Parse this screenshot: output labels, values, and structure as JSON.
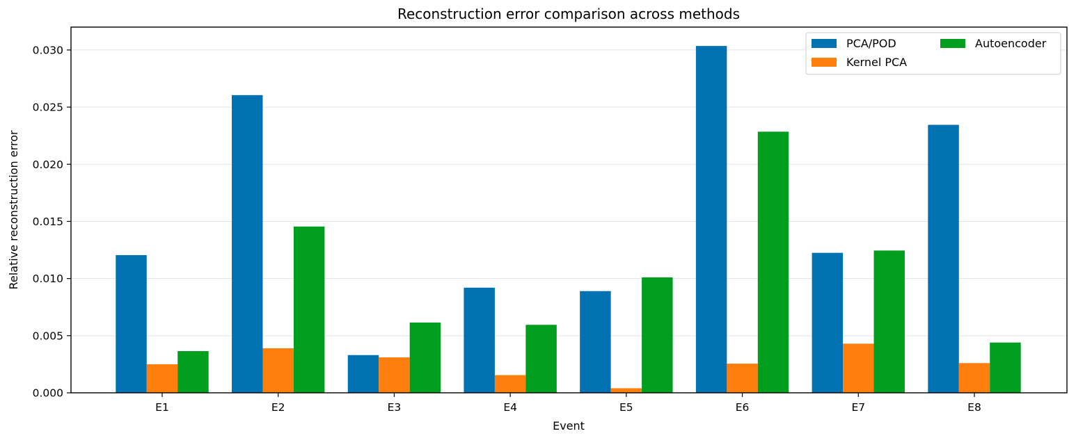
{
  "chart_data": {
    "type": "bar",
    "title": "Reconstruction error comparison across methods",
    "xlabel": "Event",
    "ylabel": "Relative reconstruction error",
    "categories": [
      "E1",
      "E2",
      "E3",
      "E4",
      "E5",
      "E6",
      "E7",
      "E8"
    ],
    "series": [
      {
        "name": "PCA/POD",
        "color": "#0072b2",
        "values": [
          0.01205,
          0.02605,
          0.0033,
          0.0092,
          0.0089,
          0.03035,
          0.01225,
          0.02345
        ]
      },
      {
        "name": "Kernel PCA",
        "color": "#ff7f0e",
        "values": [
          0.0025,
          0.0039,
          0.0031,
          0.00155,
          0.0004,
          0.00255,
          0.0043,
          0.0026
        ]
      },
      {
        "name": "Autoencoder",
        "color": "#009e1f",
        "values": [
          0.00365,
          0.01455,
          0.00615,
          0.00595,
          0.0101,
          0.02285,
          0.01245,
          0.0044
        ]
      }
    ],
    "ylim": [
      0,
      0.032
    ],
    "yticks": [
      "0.000",
      "0.005",
      "0.010",
      "0.015",
      "0.020",
      "0.025",
      "0.030"
    ],
    "grid": "y",
    "legend": {
      "placement": "top-right",
      "columns": 2
    }
  }
}
